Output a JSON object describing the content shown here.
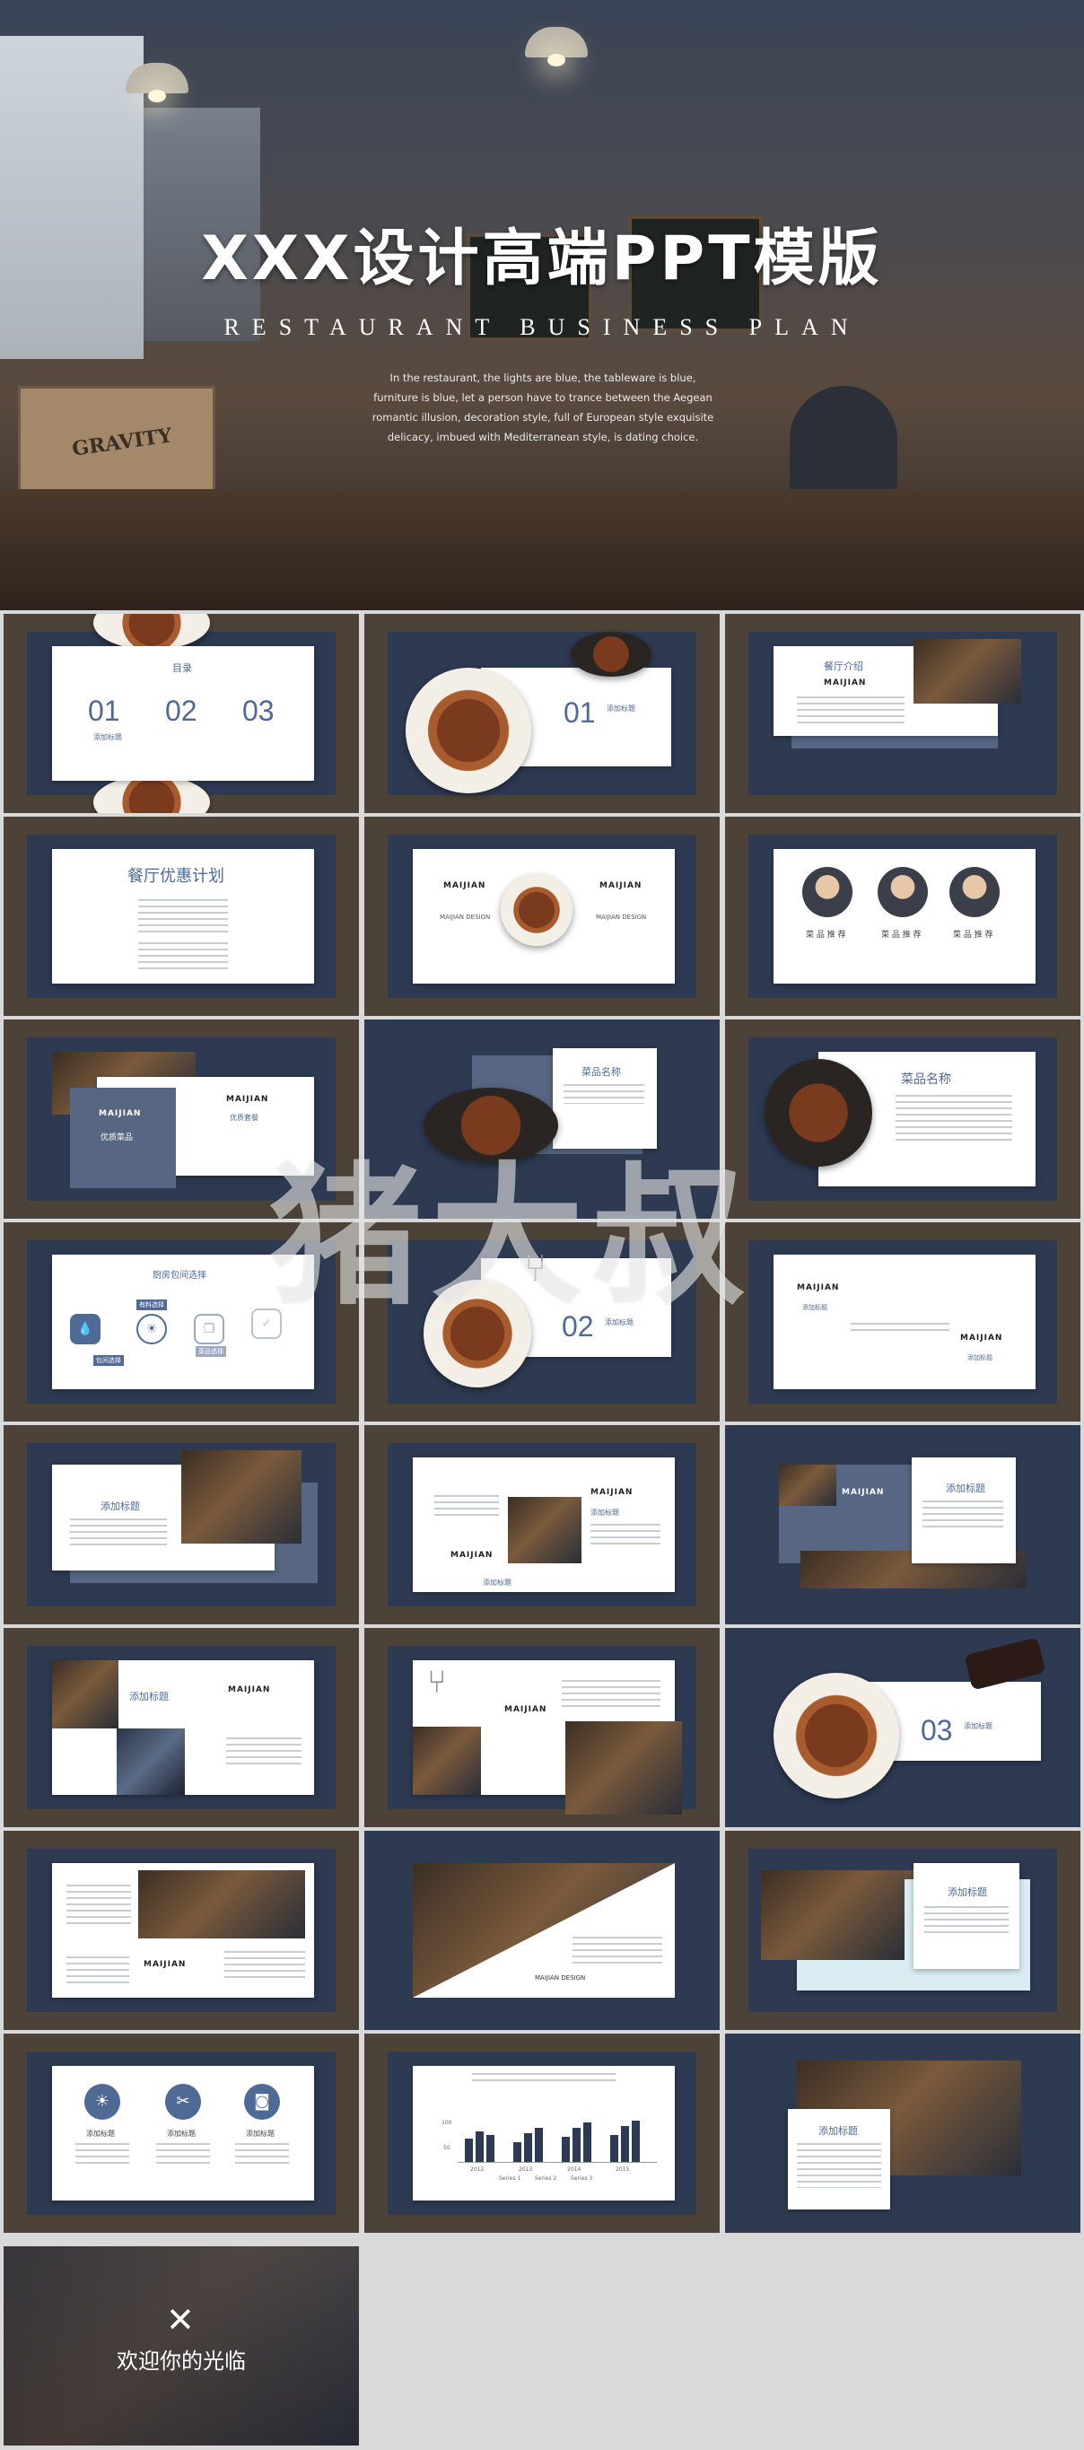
{
  "hero": {
    "title": "XXX设计高端PPT模版",
    "subtitle": "RESTAURANT BUSINESS PLAN",
    "description": "In the restaurant, the lights are blue, the tableware is blue, furniture is blue, let a person have to trance between the Aegean romantic illusion, decoration style, full of European style exquisite delicacy, imbued with Mediterranean style, is dating choice.",
    "box_text": "GRAVITY"
  },
  "slides": {
    "s1": {
      "label": "目录",
      "n1": "01",
      "n2": "02",
      "n3": "03",
      "cap": "添加标题"
    },
    "s2": {
      "num": "01",
      "cap": "添加标题"
    },
    "s3": {
      "label": "餐厅介绍",
      "logo": "MAIJIAN"
    },
    "s4": {
      "label": "餐厅优惠计划"
    },
    "s5": {
      "logo": "MAIJIAN",
      "c1": "MAIJIAN DESIGN",
      "c2": "MAIJIAN DESIGN"
    },
    "s6": {
      "p1": "菜 品 推 荐",
      "p2": "菜 品 推 荐",
      "p3": "菜 品 推 荐"
    },
    "s7": {
      "logo": "MAIJIAN",
      "panel": "优质菜品",
      "cap": "优质套餐"
    },
    "s8": {
      "label": "菜品名称"
    },
    "s9": {
      "label": "菜品名称"
    },
    "s10": {
      "label": "厨房包间选择",
      "tags": [
        "包间选择",
        "有料选择",
        "菜品选择"
      ]
    },
    "s11": {
      "num": "02",
      "cap": "添加标题"
    },
    "s12": {
      "logo": "MAIJIAN",
      "cap": "添加标题"
    },
    "s13": {
      "label": "添加标题"
    },
    "s14": {
      "logo": "MAIJIAN",
      "cap": "添加标题"
    },
    "s15": {
      "label": "添加标题",
      "logo": "MAIJIAN"
    },
    "s16": {
      "label": "添加标题",
      "logo": "MAIJIAN"
    },
    "s17": {
      "logo": "MAIJIAN"
    },
    "s18": {
      "num": "03",
      "cap": "添加标题"
    },
    "s19": {
      "logo": "MAIJIAN"
    },
    "s20": {
      "cap": "MAIJIAN DESIGN"
    },
    "s21": {
      "label": "添加标题"
    },
    "s22": {
      "i1": "添加标题",
      "i2": "添加标题",
      "i3": "添加标题"
    },
    "s23": {
      "legend": [
        "Series 1",
        "Series 2",
        "Series 3"
      ],
      "years": [
        "2012",
        "2013",
        "2014",
        "2015"
      ],
      "ymax": "100",
      "ymid": "50"
    },
    "s24": {
      "label": "添加标题"
    }
  },
  "watermark": "猪大叔",
  "ending": {
    "text": "欢迎你的光临"
  }
}
